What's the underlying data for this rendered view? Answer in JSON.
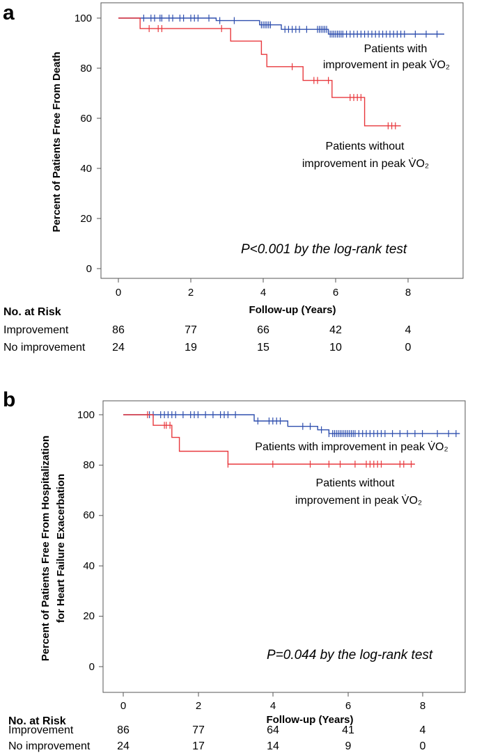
{
  "chart_data": [
    {
      "type": "line",
      "panel_label": "a",
      "xlabel": "Follow-up (Years)",
      "ylabel": "Percent of Patients Free From Death",
      "xlim": [
        0,
        9
      ],
      "ylim": [
        0,
        100
      ],
      "x_ticks": [
        0,
        2,
        4,
        6,
        8
      ],
      "y_ticks": [
        0,
        20,
        40,
        60,
        80,
        100
      ],
      "annotation": "P<0.001 by the log-rank test",
      "series": [
        {
          "color": "#2f4fae",
          "label_lines": [
            "Patients with",
            "improvement  in peak V̇O₂"
          ],
          "steps": [
            [
              0,
              100
            ],
            [
              2.7,
              99.0
            ],
            [
              3.9,
              97.3
            ],
            [
              4.5,
              95.5
            ],
            [
              5.8,
              93.6
            ],
            [
              9.0,
              93.6
            ]
          ],
          "censored": [
            0.7,
            0.9,
            1.0,
            1.15,
            1.2,
            1.4,
            1.5,
            1.7,
            1.8,
            2.0,
            2.1,
            2.2,
            2.5,
            2.8,
            3.2,
            3.95,
            4.0,
            4.05,
            4.1,
            4.15,
            4.2,
            4.6,
            4.7,
            4.8,
            4.9,
            5.0,
            5.2,
            5.5,
            5.55,
            5.6,
            5.65,
            5.7,
            5.75,
            5.85,
            5.9,
            5.95,
            6.0,
            6.05,
            6.1,
            6.15,
            6.2,
            6.3,
            6.4,
            6.5,
            6.6,
            6.7,
            6.8,
            6.9,
            7.0,
            7.1,
            7.2,
            7.3,
            7.4,
            7.5,
            7.6,
            7.7,
            7.8,
            7.9,
            8.2,
            8.5,
            8.8
          ]
        },
        {
          "color": "#e8383d",
          "label_lines": [
            "Patients without",
            "improvement  in peak V̇O₂"
          ],
          "steps": [
            [
              0,
              100
            ],
            [
              0.6,
              95.8
            ],
            [
              3.1,
              90.8
            ],
            [
              3.95,
              85.5
            ],
            [
              4.1,
              80.6
            ],
            [
              5.1,
              75.1
            ],
            [
              5.9,
              68.3
            ],
            [
              6.8,
              57.0
            ],
            [
              7.8,
              57.0
            ]
          ],
          "censored": [
            0.85,
            1.1,
            1.2,
            2.85,
            4.8,
            5.4,
            5.5,
            5.8,
            6.4,
            6.5,
            6.6,
            6.7,
            7.45,
            7.55,
            7.65
          ]
        }
      ],
      "risk_table": {
        "title": "No. at Risk",
        "rows": [
          {
            "label": "Improvement",
            "values": [
              "86",
              "77",
              "66",
              "42",
              "4"
            ]
          },
          {
            "label": "No improvement",
            "values": [
              "24",
              "19",
              "15",
              "10",
              "0"
            ]
          }
        ]
      }
    },
    {
      "type": "line",
      "panel_label": "b",
      "xlabel": "Follow-up (Years)",
      "ylabel_lines": [
        "Percent of Patients Free From Hospitalization",
        "for Heart Failure Exacerbation"
      ],
      "xlim": [
        0,
        9
      ],
      "ylim": [
        0,
        100
      ],
      "x_ticks": [
        0,
        2,
        4,
        6,
        8
      ],
      "y_ticks": [
        0,
        20,
        40,
        60,
        80,
        100
      ],
      "annotation": "P=0.044 by the log-rank test",
      "series": [
        {
          "color": "#2f4fae",
          "label_lines": [
            "Patients with improvement  in peak V̇O₂"
          ],
          "steps": [
            [
              0,
              100
            ],
            [
              3.5,
              97.5
            ],
            [
              4.4,
              95.4
            ],
            [
              5.2,
              94.0
            ],
            [
              5.5,
              92.5
            ],
            [
              9.0,
              92.5
            ]
          ],
          "censored": [
            0.7,
            0.8,
            1.0,
            1.1,
            1.2,
            1.3,
            1.4,
            1.6,
            1.8,
            1.9,
            2.0,
            2.2,
            2.4,
            2.6,
            2.7,
            2.8,
            3.0,
            3.6,
            3.9,
            4.0,
            4.1,
            4.2,
            4.8,
            5.0,
            5.3,
            5.5,
            5.6,
            5.65,
            5.7,
            5.75,
            5.8,
            5.85,
            5.9,
            5.95,
            6.0,
            6.05,
            6.1,
            6.15,
            6.2,
            6.3,
            6.4,
            6.5,
            6.6,
            6.7,
            6.8,
            6.9,
            7.0,
            7.2,
            7.4,
            7.6,
            7.8,
            8.0,
            8.4,
            8.7,
            8.9
          ]
        },
        {
          "color": "#e8383d",
          "label_lines": [
            "Patients without",
            "improvement  in peak V̇O₂"
          ],
          "steps": [
            [
              0,
              100
            ],
            [
              0.8,
              95.8
            ],
            [
              1.3,
              91.0
            ],
            [
              1.5,
              85.5
            ],
            [
              2.8,
              80.4
            ],
            [
              7.8,
              80.4
            ]
          ],
          "censored": [
            0.65,
            1.1,
            1.15,
            1.25,
            2.8,
            4.0,
            5.0,
            5.5,
            5.8,
            6.2,
            6.5,
            6.6,
            6.7,
            6.8,
            6.9,
            7.4,
            7.5,
            7.7
          ]
        }
      ],
      "risk_table": {
        "title": "No. at Risk",
        "rows": [
          {
            "label": "Improvement",
            "values": [
              "86",
              "77",
              "64",
              "41",
              "4"
            ]
          },
          {
            "label": "No improvement",
            "values": [
              "24",
              "17",
              "14",
              "9",
              "0"
            ]
          }
        ]
      }
    }
  ]
}
